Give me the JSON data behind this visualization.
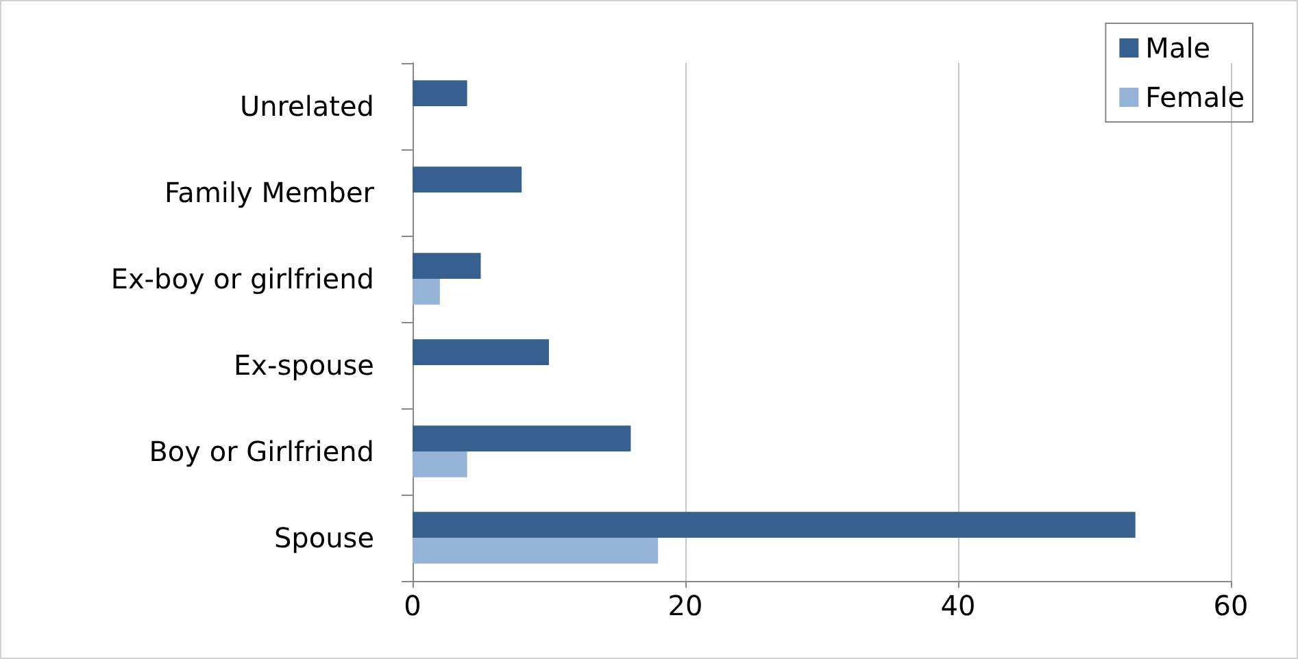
{
  "chart_data": {
    "type": "bar",
    "orientation": "horizontal",
    "categories": [
      "Unrelated",
      "Family Member",
      "Ex-boy or girlfriend",
      "Ex-spouse",
      "Boy or Girlfriend",
      "Spouse"
    ],
    "series": [
      {
        "name": "Male",
        "color": "#35608f",
        "values": [
          4,
          8,
          5,
          10,
          16,
          53
        ]
      },
      {
        "name": "Female",
        "color": "#95b3d7",
        "values": [
          null,
          null,
          2,
          null,
          4,
          18
        ]
      }
    ],
    "xlim": [
      0,
      60
    ],
    "xticks": [
      0,
      20,
      40,
      60
    ],
    "grid": "x",
    "legend": "top right"
  }
}
